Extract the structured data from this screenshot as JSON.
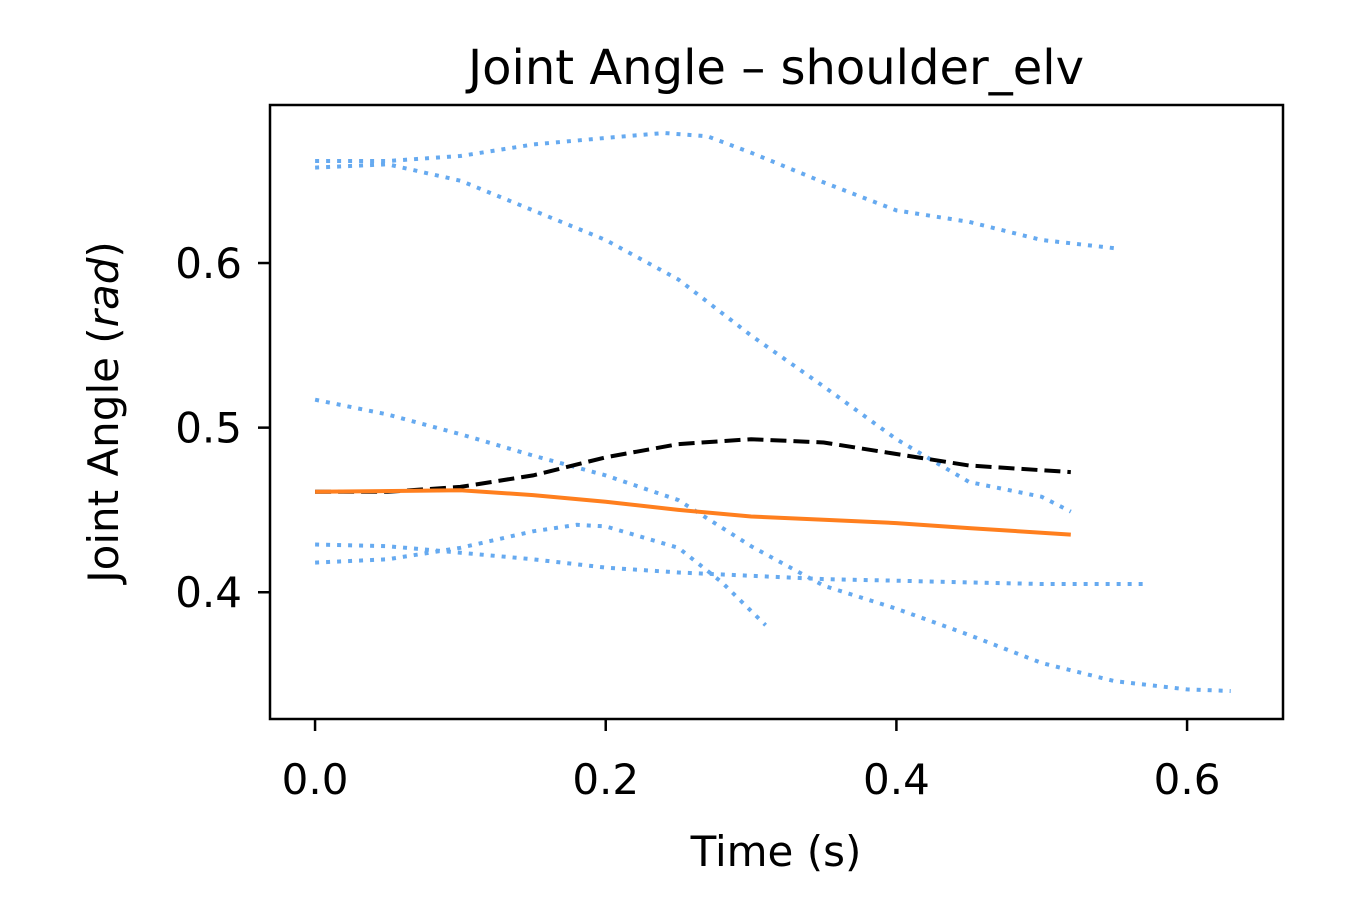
{
  "chart_data": {
    "type": "line",
    "title": "Joint Angle – shoulder_elv",
    "xlabel": "Time (s)",
    "ylabel_main": "Joint Angle (",
    "ylabel_unit": "rad",
    "ylabel_close": ")",
    "xlim": [
      -0.031,
      0.666
    ],
    "ylim": [
      0.323,
      0.696
    ],
    "x_ticks": [
      0.0,
      0.2,
      0.4,
      0.6
    ],
    "x_tick_labels": [
      "0.0",
      "0.2",
      "0.4",
      "0.6"
    ],
    "y_ticks": [
      0.4,
      0.5,
      0.6
    ],
    "y_tick_labels": [
      "0.4",
      "0.5",
      "0.6"
    ],
    "grid": false,
    "legend": "none",
    "colors": {
      "trial": "#66aaf0",
      "mean": "#000000",
      "prediction": "#ff7f1e"
    },
    "series": [
      {
        "style": "dotted",
        "color_key": "trial",
        "points": [
          [
            0.0,
            0.662
          ],
          [
            0.05,
            0.662
          ],
          [
            0.1,
            0.665
          ],
          [
            0.15,
            0.672
          ],
          [
            0.2,
            0.676
          ],
          [
            0.24,
            0.679
          ],
          [
            0.27,
            0.677
          ],
          [
            0.3,
            0.667
          ],
          [
            0.35,
            0.649
          ],
          [
            0.4,
            0.632
          ],
          [
            0.45,
            0.625
          ],
          [
            0.5,
            0.614
          ],
          [
            0.55,
            0.609
          ]
        ]
      },
      {
        "style": "dotted",
        "color_key": "trial",
        "points": [
          [
            0.0,
            0.658
          ],
          [
            0.05,
            0.66
          ],
          [
            0.1,
            0.65
          ],
          [
            0.15,
            0.632
          ],
          [
            0.2,
            0.614
          ],
          [
            0.25,
            0.59
          ],
          [
            0.3,
            0.556
          ],
          [
            0.35,
            0.525
          ],
          [
            0.4,
            0.493
          ],
          [
            0.45,
            0.467
          ],
          [
            0.5,
            0.458
          ],
          [
            0.52,
            0.449
          ]
        ]
      },
      {
        "style": "dotted",
        "color_key": "trial",
        "points": [
          [
            0.0,
            0.517
          ],
          [
            0.05,
            0.508
          ],
          [
            0.1,
            0.496
          ],
          [
            0.15,
            0.483
          ],
          [
            0.2,
            0.471
          ],
          [
            0.25,
            0.456
          ],
          [
            0.3,
            0.428
          ],
          [
            0.35,
            0.404
          ],
          [
            0.4,
            0.39
          ],
          [
            0.45,
            0.374
          ],
          [
            0.5,
            0.357
          ],
          [
            0.55,
            0.346
          ],
          [
            0.6,
            0.341
          ],
          [
            0.63,
            0.34
          ]
        ]
      },
      {
        "style": "dotted",
        "color_key": "trial",
        "points": [
          [
            0.0,
            0.429
          ],
          [
            0.05,
            0.428
          ],
          [
            0.1,
            0.424
          ],
          [
            0.15,
            0.42
          ],
          [
            0.2,
            0.415
          ],
          [
            0.25,
            0.412
          ],
          [
            0.3,
            0.41
          ],
          [
            0.35,
            0.408
          ],
          [
            0.4,
            0.407
          ],
          [
            0.45,
            0.406
          ],
          [
            0.5,
            0.405
          ],
          [
            0.57,
            0.405
          ]
        ]
      },
      {
        "style": "dotted",
        "color_key": "trial",
        "points": [
          [
            0.0,
            0.418
          ],
          [
            0.05,
            0.42
          ],
          [
            0.1,
            0.427
          ],
          [
            0.15,
            0.437
          ],
          [
            0.18,
            0.441
          ],
          [
            0.2,
            0.44
          ],
          [
            0.25,
            0.427
          ],
          [
            0.28,
            0.406
          ],
          [
            0.31,
            0.38
          ]
        ]
      },
      {
        "style": "dashed",
        "color_key": "mean",
        "points": [
          [
            0.0,
            0.461
          ],
          [
            0.05,
            0.461
          ],
          [
            0.1,
            0.464
          ],
          [
            0.15,
            0.471
          ],
          [
            0.2,
            0.482
          ],
          [
            0.25,
            0.49
          ],
          [
            0.3,
            0.493
          ],
          [
            0.35,
            0.491
          ],
          [
            0.4,
            0.484
          ],
          [
            0.45,
            0.477
          ],
          [
            0.52,
            0.473
          ]
        ]
      },
      {
        "style": "solid",
        "color_key": "prediction",
        "points": [
          [
            0.0,
            0.461
          ],
          [
            0.1,
            0.462
          ],
          [
            0.15,
            0.459
          ],
          [
            0.2,
            0.455
          ],
          [
            0.25,
            0.45
          ],
          [
            0.3,
            0.446
          ],
          [
            0.35,
            0.444
          ],
          [
            0.4,
            0.442
          ],
          [
            0.45,
            0.439
          ],
          [
            0.52,
            0.435
          ]
        ]
      }
    ]
  }
}
